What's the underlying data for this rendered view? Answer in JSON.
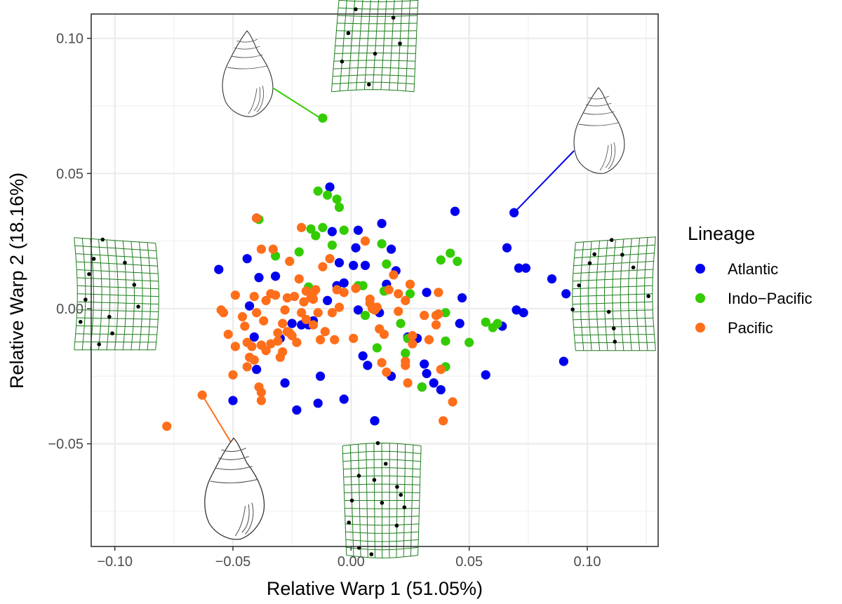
{
  "chart_data": {
    "type": "scatter",
    "xlabel": "Relative Warp 1 (51.05%)",
    "ylabel": "Relative Warp 2 (18.16%)",
    "xlim": [
      -0.11,
      0.13
    ],
    "ylim": [
      -0.088,
      0.109
    ],
    "x_ticks": [
      -0.1,
      -0.05,
      0.0,
      0.05,
      0.1
    ],
    "x_tick_labels": [
      "−0.10",
      "−0.05",
      "0.00",
      "0.05",
      "0.10"
    ],
    "y_ticks": [
      -0.05,
      0.0,
      0.05,
      0.1
    ],
    "y_tick_labels": [
      "−0.05",
      "0.00",
      "0.05",
      "0.10"
    ],
    "grid": true,
    "legend": {
      "title": "Lineage",
      "position": "right",
      "entries": [
        "Atlantic",
        "Indo−Pacific",
        "Pacific"
      ]
    },
    "series": [
      {
        "name": "Atlantic",
        "color": "#0000ee",
        "points": [
          [
            -0.056,
            0.0145
          ],
          [
            -0.044,
            0.0185
          ],
          [
            -0.04,
            0.0335
          ],
          [
            -0.039,
            0.0115
          ],
          [
            -0.041,
            -0.0105
          ],
          [
            -0.043,
            0.001
          ],
          [
            -0.05,
            -0.034
          ],
          [
            -0.04,
            -0.0225
          ],
          [
            -0.032,
            0.012
          ],
          [
            -0.028,
            -0.0275
          ],
          [
            -0.025,
            -0.0055
          ],
          [
            -0.023,
            -0.0375
          ],
          [
            -0.021,
            -0.006
          ],
          [
            -0.018,
            -0.006
          ],
          [
            -0.016,
            -0.0045
          ],
          [
            -0.014,
            -0.035
          ],
          [
            -0.013,
            -0.025
          ],
          [
            -0.01,
            0.003
          ],
          [
            -0.009,
            0.045
          ],
          [
            -0.008,
            0.0285
          ],
          [
            -0.006,
            0.0085
          ],
          [
            -0.005,
            0.017
          ],
          [
            -0.003,
            -0.0335
          ],
          [
            -0.003,
            0.0095
          ],
          [
            0.001,
            0.016
          ],
          [
            0.003,
            0.029
          ],
          [
            0.005,
            -0.0175
          ],
          [
            0.006,
            0.016
          ],
          [
            0.007,
            -0.021
          ],
          [
            0.01,
            -0.0415
          ],
          [
            0.012,
            -0.0015
          ],
          [
            0.013,
            0.0315
          ],
          [
            0.015,
            0.009
          ],
          [
            0.017,
            0.022
          ],
          [
            0.019,
            0.014
          ],
          [
            0.017,
            -0.025
          ],
          [
            0.028,
            -0.011
          ],
          [
            0.03,
            -0.029
          ],
          [
            0.031,
            -0.0205
          ],
          [
            0.032,
            0.006
          ],
          [
            0.035,
            -0.0275
          ],
          [
            0.038,
            -0.03
          ],
          [
            0.044,
            0.036
          ],
          [
            0.046,
            -0.0055
          ],
          [
            0.047,
            0.004
          ],
          [
            0.057,
            -0.0245
          ],
          [
            0.064,
            -0.0065
          ],
          [
            0.066,
            0.0225
          ],
          [
            0.069,
            0.0355
          ],
          [
            0.07,
            -0.0005
          ],
          [
            0.071,
            0.015
          ],
          [
            0.074,
            0.015
          ],
          [
            0.073,
            -0.0015
          ],
          [
            0.085,
            0.011
          ],
          [
            0.091,
            0.0055
          ],
          [
            0.09,
            -0.0195
          ],
          [
            0.01,
            -0.0415
          ],
          [
            0.032,
            -0.024
          ],
          [
            0.024,
            -0.0105
          ],
          [
            0.003,
            -0.0005
          ],
          [
            -0.03,
            -0.011
          ],
          [
            0.002,
            0.0225
          ]
        ]
      },
      {
        "name": "Indo−Pacific",
        "color": "#33cc00",
        "points": [
          [
            -0.014,
            0.0435
          ],
          [
            -0.01,
            0.042
          ],
          [
            -0.006,
            0.0405
          ],
          [
            -0.005,
            0.0375
          ],
          [
            -0.012,
            0.0705
          ],
          [
            -0.012,
            0.03
          ],
          [
            -0.017,
            0.0295
          ],
          [
            -0.015,
            0.027
          ],
          [
            -0.022,
            0.021
          ],
          [
            -0.039,
            0.033
          ],
          [
            -0.032,
            0.0195
          ],
          [
            -0.018,
            0.008
          ],
          [
            -0.008,
            0.0235
          ],
          [
            -0.003,
            0.029
          ],
          [
            0.003,
            0.0085
          ],
          [
            0.006,
            -0.0025
          ],
          [
            0.005,
            0.0085
          ],
          [
            0.011,
            -0.0145
          ],
          [
            0.013,
            0.024
          ],
          [
            0.014,
            0.0065
          ],
          [
            0.015,
            0.0165
          ],
          [
            0.021,
            -0.0055
          ],
          [
            0.023,
            -0.0165
          ],
          [
            0.024,
            -0.011
          ],
          [
            0.025,
            0.0055
          ],
          [
            0.03,
            -0.029
          ],
          [
            0.038,
            0.018
          ],
          [
            0.04,
            -0.0015
          ],
          [
            0.04,
            -0.0215
          ],
          [
            0.04,
            -0.012
          ],
          [
            0.042,
            0.0205
          ],
          [
            0.045,
            0.0175
          ],
          [
            0.05,
            -0.0125
          ],
          [
            0.057,
            -0.005
          ],
          [
            0.06,
            -0.007
          ],
          [
            0.062,
            -0.0055
          ]
        ]
      },
      {
        "name": "Pacific",
        "color": "#ff6e1a",
        "points": [
          [
            -0.078,
            -0.0435
          ],
          [
            -0.063,
            -0.032
          ],
          [
            -0.055,
            -0.0005
          ],
          [
            -0.054,
            -0.0015
          ],
          [
            -0.05,
            -0.0245
          ],
          [
            -0.049,
            -0.014
          ],
          [
            -0.049,
            0.005
          ],
          [
            -0.045,
            -0.0065
          ],
          [
            -0.044,
            -0.0125
          ],
          [
            -0.043,
            -0.018
          ],
          [
            -0.042,
            -0.014
          ],
          [
            -0.04,
            -0.0015
          ],
          [
            -0.038,
            -0.0135
          ],
          [
            -0.038,
            -0.031
          ],
          [
            -0.038,
            -0.034
          ],
          [
            -0.037,
            -0.0045
          ],
          [
            -0.036,
            -0.0155
          ],
          [
            -0.034,
            -0.013
          ],
          [
            -0.034,
            0.0055
          ],
          [
            -0.032,
            0.005
          ],
          [
            -0.031,
            -0.009
          ],
          [
            -0.031,
            -0.012
          ],
          [
            -0.029,
            -0.016
          ],
          [
            -0.029,
            -0.0055
          ],
          [
            -0.027,
            -0.0085
          ],
          [
            -0.026,
            -0.009
          ],
          [
            -0.04,
            0.0335
          ],
          [
            -0.038,
            0.022
          ],
          [
            -0.033,
            0.022
          ],
          [
            -0.026,
            0.0175
          ],
          [
            -0.024,
            0.0045
          ],
          [
            -0.022,
            0.011
          ],
          [
            -0.02,
            0.0025
          ],
          [
            -0.019,
            0.0065
          ],
          [
            -0.016,
            0.0035
          ],
          [
            -0.016,
            -0.006
          ],
          [
            -0.015,
            0.007
          ],
          [
            -0.013,
            -0.0115
          ],
          [
            -0.021,
            0.03
          ],
          [
            -0.016,
            0.006
          ],
          [
            -0.014,
            -0.0015
          ],
          [
            -0.009,
            0.0185
          ],
          [
            -0.008,
            -0.0015
          ],
          [
            -0.007,
            -0.0115
          ],
          [
            -0.006,
            0.007
          ],
          [
            -0.005,
            0.0005
          ],
          [
            -0.003,
            0.006
          ],
          [
            0.006,
            0.025
          ],
          [
            0.008,
            0.0035
          ],
          [
            0.009,
            0.0
          ],
          [
            0.011,
            0.0005
          ],
          [
            0.012,
            -0.0075
          ],
          [
            0.013,
            -0.02
          ],
          [
            0.014,
            -0.0095
          ],
          [
            0.015,
            -0.0235
          ],
          [
            0.023,
            -0.0195
          ],
          [
            0.024,
            -0.0275
          ],
          [
            0.026,
            -0.01
          ],
          [
            0.031,
            -0.0025
          ],
          [
            0.033,
            -0.0115
          ],
          [
            0.036,
            -0.006
          ],
          [
            0.037,
            -0.002
          ],
          [
            0.037,
            0.006
          ],
          [
            0.038,
            -0.0225
          ],
          [
            0.039,
            -0.0415
          ],
          [
            0.043,
            -0.0345
          ],
          [
            0.025,
            0.009
          ],
          [
            0.026,
            -0.013
          ],
          [
            0.023,
            0.003
          ],
          [
            0.02,
            -0.001
          ],
          [
            0.018,
            0.0125
          ],
          [
            0.016,
            0.007
          ],
          [
            0.01,
            -0.0005
          ],
          [
            0.008,
            0.002
          ],
          [
            0.002,
            0.0075
          ],
          [
            0.001,
            -0.011
          ],
          [
            -0.011,
            -0.0085
          ],
          [
            -0.028,
            -0.0005
          ],
          [
            -0.025,
            -0.01
          ],
          [
            -0.023,
            -0.0125
          ],
          [
            -0.021,
            -0.0015
          ],
          [
            -0.019,
            -0.004
          ],
          [
            -0.017,
            0.004
          ],
          [
            -0.036,
            0.003
          ],
          [
            -0.041,
            0.0045
          ],
          [
            -0.046,
            -0.003
          ],
          [
            -0.052,
            -0.0095
          ],
          [
            -0.044,
            -0.0215
          ],
          [
            -0.041,
            -0.019
          ],
          [
            -0.039,
            -0.029
          ],
          [
            -0.03,
            -0.018
          ],
          [
            0.02,
            0.0055
          ],
          [
            0.023,
            -0.021
          ],
          [
            0.036,
            -0.0025
          ],
          [
            -0.027,
            0.004
          ],
          [
            -0.012,
            0.0155
          ]
        ]
      }
    ],
    "annotations": [
      {
        "name": "shell-top",
        "anchor": [
          -0.013,
          0.0705
        ],
        "color": "#33cc00"
      },
      {
        "name": "shell-right",
        "anchor": [
          0.069,
          0.0355
        ],
        "color": "#0000ee"
      },
      {
        "name": "shell-bottom-left",
        "anchor": [
          -0.063,
          -0.032
        ],
        "color": "#ff6e1a"
      },
      {
        "name": "grid-top",
        "anchor": [
          0.01,
          0.1
        ]
      },
      {
        "name": "grid-left",
        "anchor": [
          -0.1,
          0.005
        ]
      },
      {
        "name": "grid-right",
        "anchor": [
          0.112,
          0.005
        ]
      },
      {
        "name": "grid-bottom",
        "anchor": [
          0.013,
          -0.071
        ]
      }
    ]
  }
}
